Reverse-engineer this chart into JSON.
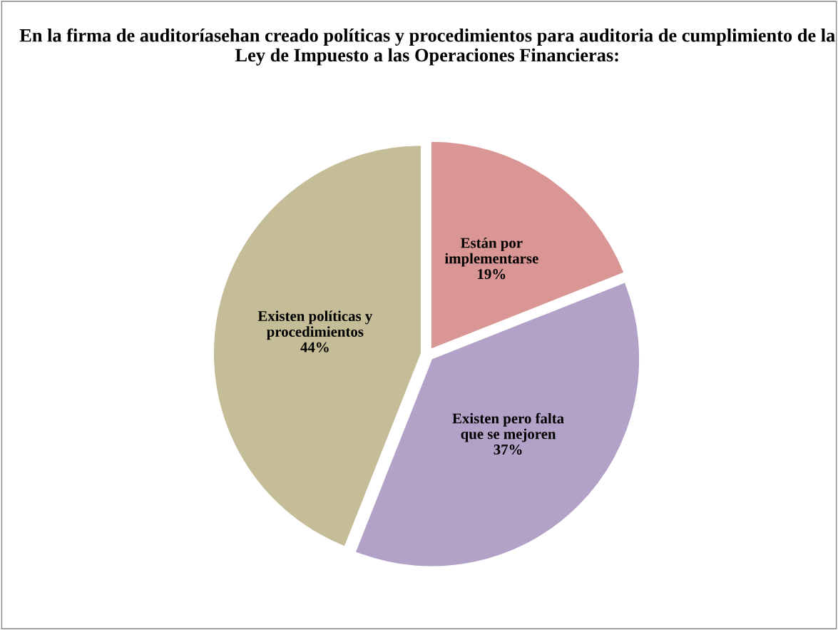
{
  "chart_data": {
    "type": "pie",
    "title": "En la firma de auditoríasehan creado políticas y procedimientos para auditoria de cumplimiento de la Ley de Impuesto a las Operaciones Financieras:",
    "categories": [
      "Están por\nimplementarse",
      "Existen pero falta\nque se mejoren",
      "Existen políticas y\nprocedimientos"
    ],
    "values": [
      19,
      37,
      44
    ],
    "colors": [
      "#d99694",
      "#b3a2c7",
      "#c4bd97"
    ],
    "value_labels": [
      "19%",
      "37%",
      "44%"
    ],
    "legend": false
  }
}
